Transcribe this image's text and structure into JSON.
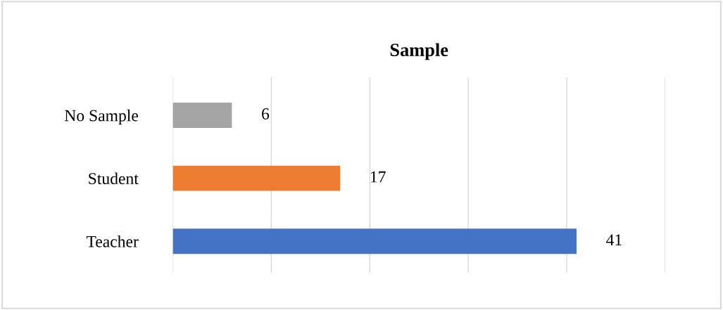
{
  "chart_data": {
    "type": "bar",
    "orientation": "horizontal",
    "title": "Sample",
    "categories": [
      "No Sample",
      "Student",
      "Teacher"
    ],
    "values": [
      6,
      17,
      41
    ],
    "colors": [
      "#a5a5a5",
      "#ed7d31",
      "#4472c4"
    ],
    "data_labels": true,
    "xlim": [
      0,
      50
    ],
    "xticks": [
      {
        "value": 0,
        "label": null
      },
      {
        "value": 10,
        "label": null
      },
      {
        "value": 20,
        "label": null
      },
      {
        "value": 30,
        "label": null
      },
      {
        "value": 40,
        "label": null
      },
      {
        "value": 50,
        "label": null
      }
    ],
    "tick_labels": "y",
    "grid": "x",
    "legend": false
  }
}
